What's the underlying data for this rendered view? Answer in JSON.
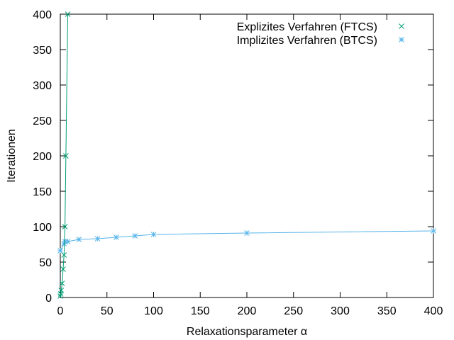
{
  "chart_data": {
    "type": "line",
    "xlabel": "Relaxationsparameter α",
    "ylabel": "Iterationen",
    "xlim": [
      0,
      400
    ],
    "ylim": [
      0,
      400
    ],
    "xticks": [
      0,
      50,
      100,
      150,
      200,
      250,
      300,
      350,
      400
    ],
    "yticks": [
      0,
      50,
      100,
      150,
      200,
      250,
      300,
      350,
      400
    ],
    "grid": false,
    "legend_position": "top-right",
    "series": [
      {
        "name": "Explizites Verfahren (FTCS)",
        "marker": "x",
        "color": "#009e73",
        "points": [
          [
            0,
            2
          ],
          [
            0.5,
            5
          ],
          [
            1,
            10
          ],
          [
            2,
            20
          ],
          [
            3,
            40
          ],
          [
            4,
            60
          ],
          [
            5,
            100
          ],
          [
            6,
            200
          ],
          [
            8,
            400
          ]
        ]
      },
      {
        "name": "Implizites Verfahren (BTCS)",
        "marker": "asterisk",
        "color": "#56b4e9",
        "points": [
          [
            0,
            66
          ],
          [
            4,
            76
          ],
          [
            5,
            79
          ],
          [
            8,
            79
          ],
          [
            20,
            82
          ],
          [
            40,
            83
          ],
          [
            60,
            85
          ],
          [
            80,
            87
          ],
          [
            100,
            89
          ],
          [
            200,
            91
          ],
          [
            400,
            94
          ]
        ]
      }
    ]
  }
}
